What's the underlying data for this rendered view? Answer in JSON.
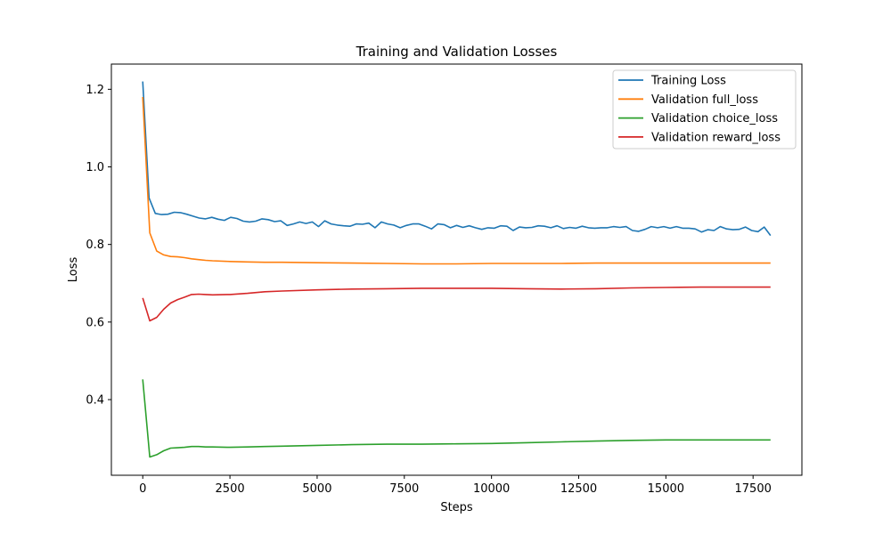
{
  "chart_data": {
    "type": "line",
    "title": "Training and Validation Losses",
    "xlabel": "Steps",
    "ylabel": "Loss",
    "xlim": [
      -900,
      18900
    ],
    "ylim": [
      0.205,
      1.265
    ],
    "xticks": [
      0,
      2500,
      5000,
      7500,
      10000,
      12500,
      15000,
      17500
    ],
    "yticks": [
      0.4,
      0.6,
      0.8,
      1.0,
      1.2
    ],
    "xtick_labels": [
      "0",
      "2500",
      "5000",
      "7500",
      "10000",
      "12500",
      "15000",
      "17500"
    ],
    "ytick_labels": [
      "0.4",
      "0.6",
      "0.8",
      "1.0",
      "1.2"
    ],
    "grid": false,
    "legend_position": "top-right",
    "series": [
      {
        "name": "Training Loss",
        "color": "#1f77b4",
        "x": [
          0,
          180,
          360,
          540,
          720,
          900,
          1080,
          1260,
          1440,
          1620,
          1800,
          1980,
          2160,
          2340,
          2520,
          2700,
          2880,
          3060,
          3240,
          3420,
          3600,
          3780,
          3960,
          4140,
          4320,
          4500,
          4680,
          4860,
          5040,
          5220,
          5400,
          5580,
          5760,
          5940,
          6120,
          6300,
          6480,
          6660,
          6840,
          7020,
          7200,
          7380,
          7560,
          7740,
          7920,
          8100,
          8280,
          8460,
          8640,
          8820,
          9000,
          9180,
          9360,
          9540,
          9720,
          9900,
          10080,
          10260,
          10440,
          10620,
          10800,
          10980,
          11160,
          11340,
          11520,
          11700,
          11880,
          12060,
          12240,
          12420,
          12600,
          12780,
          12960,
          13140,
          13320,
          13500,
          13680,
          13860,
          14040,
          14220,
          14400,
          14580,
          14760,
          14940,
          15120,
          15300,
          15480,
          15660,
          15840,
          16020,
          16200,
          16380,
          16560,
          16740,
          16920,
          17100,
          17280,
          17460,
          17640,
          17820,
          18000
        ],
        "values": [
          1.22,
          0.92,
          0.88,
          0.877,
          0.878,
          0.883,
          0.882,
          0.878,
          0.873,
          0.868,
          0.866,
          0.87,
          0.865,
          0.862,
          0.87,
          0.867,
          0.86,
          0.858,
          0.86,
          0.866,
          0.864,
          0.859,
          0.861,
          0.849,
          0.853,
          0.858,
          0.854,
          0.858,
          0.846,
          0.861,
          0.853,
          0.85,
          0.848,
          0.847,
          0.853,
          0.852,
          0.855,
          0.843,
          0.858,
          0.853,
          0.85,
          0.843,
          0.849,
          0.853,
          0.853,
          0.847,
          0.84,
          0.853,
          0.851,
          0.843,
          0.849,
          0.844,
          0.848,
          0.843,
          0.839,
          0.843,
          0.842,
          0.848,
          0.847,
          0.836,
          0.845,
          0.843,
          0.844,
          0.848,
          0.847,
          0.843,
          0.848,
          0.841,
          0.844,
          0.842,
          0.847,
          0.843,
          0.842,
          0.843,
          0.843,
          0.846,
          0.844,
          0.846,
          0.836,
          0.834,
          0.839,
          0.846,
          0.843,
          0.846,
          0.842,
          0.846,
          0.842,
          0.842,
          0.84,
          0.832,
          0.838,
          0.836,
          0.846,
          0.84,
          0.838,
          0.839,
          0.845,
          0.836,
          0.833,
          0.845,
          0.823
        ]
      },
      {
        "name": "Validation full_loss",
        "color": "#ff7f0e",
        "x": [
          0,
          200,
          400,
          600,
          800,
          1000,
          1200,
          1400,
          1600,
          1800,
          2000,
          2500,
          3000,
          3500,
          4000,
          5000,
          6000,
          7000,
          8000,
          9000,
          10000,
          11000,
          12000,
          13000,
          14000,
          15000,
          16000,
          17000,
          18000
        ],
        "values": [
          1.18,
          0.83,
          0.783,
          0.773,
          0.769,
          0.768,
          0.766,
          0.763,
          0.761,
          0.759,
          0.758,
          0.756,
          0.755,
          0.754,
          0.754,
          0.753,
          0.752,
          0.751,
          0.75,
          0.75,
          0.751,
          0.751,
          0.751,
          0.752,
          0.752,
          0.752,
          0.752,
          0.752,
          0.752
        ]
      },
      {
        "name": "Validation choice_loss",
        "color": "#2ca02c",
        "x": [
          0,
          200,
          400,
          600,
          800,
          1000,
          1200,
          1400,
          1600,
          1800,
          2000,
          2500,
          3000,
          3500,
          4000,
          5000,
          6000,
          7000,
          8000,
          9000,
          10000,
          11000,
          12000,
          13000,
          14000,
          15000,
          16000,
          17000,
          18000
        ],
        "values": [
          0.452,
          0.252,
          0.258,
          0.268,
          0.275,
          0.276,
          0.277,
          0.279,
          0.279,
          0.278,
          0.278,
          0.277,
          0.278,
          0.279,
          0.28,
          0.282,
          0.284,
          0.285,
          0.285,
          0.286,
          0.287,
          0.289,
          0.291,
          0.293,
          0.295,
          0.296,
          0.296,
          0.296,
          0.296
        ]
      },
      {
        "name": "Validation reward_loss",
        "color": "#d62728",
        "x": [
          0,
          200,
          400,
          600,
          800,
          1000,
          1200,
          1400,
          1600,
          1800,
          2000,
          2500,
          3000,
          3500,
          4000,
          5000,
          6000,
          7000,
          8000,
          9000,
          10000,
          11000,
          12000,
          13000,
          14000,
          15000,
          16000,
          17000,
          18000
        ],
        "values": [
          0.662,
          0.603,
          0.612,
          0.633,
          0.649,
          0.658,
          0.664,
          0.671,
          0.672,
          0.671,
          0.67,
          0.671,
          0.674,
          0.678,
          0.68,
          0.683,
          0.685,
          0.686,
          0.687,
          0.687,
          0.687,
          0.686,
          0.685,
          0.686,
          0.688,
          0.689,
          0.69,
          0.69,
          0.69
        ]
      }
    ]
  }
}
